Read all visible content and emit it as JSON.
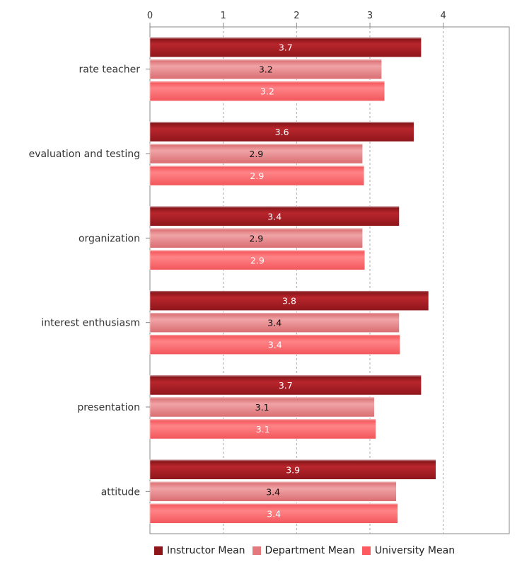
{
  "chart_data": {
    "type": "bar",
    "orientation": "horizontal",
    "categories": [
      "rate teacher",
      "evaluation and testing",
      "organization",
      "interest enthusiasm",
      "presentation",
      "attitude"
    ],
    "series": [
      {
        "name": "Instructor Mean",
        "color": "#a01c22",
        "values": [
          3.7,
          3.6,
          3.4,
          3.8,
          3.7,
          3.9
        ],
        "labels": [
          "3.7",
          "3.6",
          "3.4",
          "3.8",
          "3.7",
          "3.9"
        ]
      },
      {
        "name": "Department Mean",
        "color": "#e4797d",
        "values": [
          3.16,
          2.9,
          2.9,
          3.4,
          3.06,
          3.36
        ],
        "labels": [
          "3.2",
          "2.9",
          "2.9",
          "3.4",
          "3.1",
          "3.4"
        ]
      },
      {
        "name": "University Mean",
        "color": "#ff5a5f",
        "values": [
          3.2,
          2.92,
          2.93,
          3.41,
          3.08,
          3.38
        ],
        "labels": [
          "3.2",
          "2.9",
          "2.9",
          "3.4",
          "3.1",
          "3.4"
        ]
      }
    ],
    "xlim": [
      0,
      4.9
    ],
    "xticks": [
      "0",
      "1",
      "2",
      "3",
      "4"
    ],
    "grid": true,
    "legend_position": "bottom"
  }
}
